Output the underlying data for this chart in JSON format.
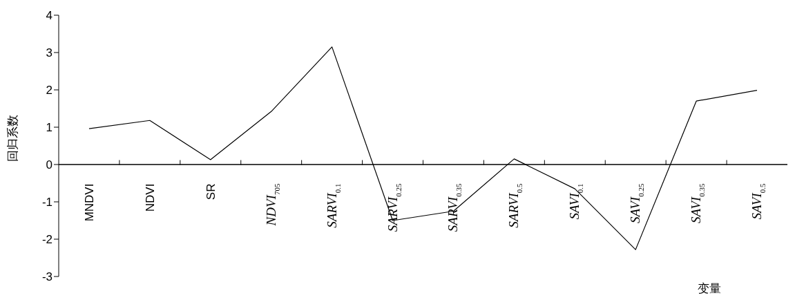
{
  "chart_data": {
    "type": "line",
    "xlabel": "变量",
    "ylabel": "回归系数",
    "categories": [
      "MNDVI",
      "NDVI",
      "SR",
      "NDVI$_{705}$",
      "SARVI$_{0.1}$",
      "SARVI$_{0.25}$",
      "SARVI$_{0.35}$",
      "SARVI$_{0.5}$",
      "SAVI$_{0.1}$",
      "SAVI$_{0.25}$",
      "SAVI$_{0.35}$",
      "SAVI$_{0.5}$"
    ],
    "values": [
      0.96,
      1.18,
      0.13,
      1.42,
      3.15,
      -1.5,
      -1.25,
      0.15,
      -0.65,
      -2.28,
      1.7,
      1.99
    ],
    "color": "#000000",
    "ylim": [
      -3,
      4
    ],
    "yticks": [
      -3,
      -2,
      -1,
      0,
      1,
      2,
      3,
      4
    ]
  }
}
